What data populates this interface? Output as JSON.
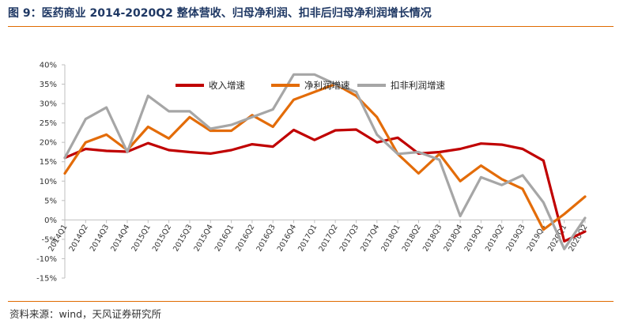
{
  "figure": {
    "title": "图 9：医药商业 2014-2020Q2 整体营收、归母净利润、扣非后归母净利润增长情况",
    "source": "资料来源：wind，天风证券研究所"
  },
  "chart_data": {
    "type": "line",
    "title": "",
    "xlabel": "",
    "ylabel": "",
    "ylim": [
      -15,
      40
    ],
    "ytick_step": 5,
    "ytick_labels": [
      "-15%",
      "-10%",
      "-5%",
      "0%",
      "5%",
      "10%",
      "15%",
      "20%",
      "25%",
      "30%",
      "35%",
      "40%"
    ],
    "legend_position": "top",
    "categories": [
      "2014Q1",
      "2014Q2",
      "2014Q3",
      "2014Q4",
      "2015Q1",
      "2015Q2",
      "2015Q3",
      "2015Q4",
      "2016Q1",
      "2016Q2",
      "2016Q3",
      "2016Q4",
      "2017Q1",
      "2017Q2",
      "2017Q3",
      "2017Q4",
      "2018Q1",
      "2018Q2",
      "2018Q3",
      "2018Q4",
      "2019Q1",
      "2019Q2",
      "2019Q3",
      "2019Q4",
      "2020Q1",
      "2020Q2"
    ],
    "series": [
      {
        "name": "收入增速",
        "color": "#c00000",
        "values": [
          16.0,
          18.3,
          17.8,
          17.6,
          19.8,
          18.0,
          17.5,
          17.1,
          18.0,
          19.5,
          18.9,
          23.2,
          20.6,
          23.1,
          23.3,
          20.0,
          21.2,
          17.1,
          17.5,
          18.3,
          19.7,
          19.4,
          18.3,
          15.3,
          -5.5,
          -3.0
        ]
      },
      {
        "name": "净利润增速",
        "color": "#e36c09",
        "values": [
          12.0,
          20.0,
          22.0,
          18.0,
          24.0,
          21.0,
          26.5,
          23.0,
          23.0,
          27.0,
          24.0,
          31.0,
          33.0,
          35.0,
          32.0,
          26.5,
          17.0,
          12.0,
          17.0,
          10.0,
          14.0,
          10.5,
          8.0,
          -2.5,
          1.5,
          6.0
        ]
      },
      {
        "name": "扣非利润增速",
        "color": "#a6a6a6",
        "values": [
          16.0,
          26.0,
          29.0,
          17.5,
          32.0,
          28.0,
          28.0,
          23.5,
          24.5,
          26.5,
          28.5,
          37.5,
          37.5,
          35.0,
          33.0,
          22.0,
          17.0,
          17.5,
          15.5,
          1.0,
          11.0,
          9.0,
          11.5,
          4.5,
          -7.5,
          0.5
        ]
      }
    ]
  }
}
